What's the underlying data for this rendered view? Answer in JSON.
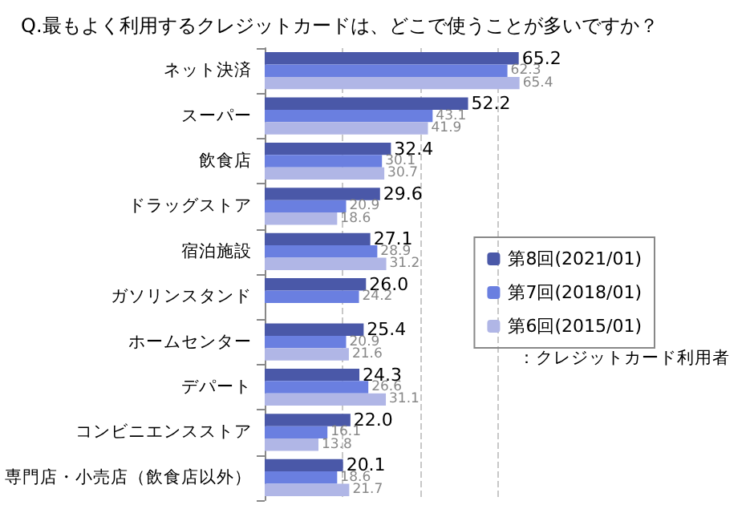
{
  "chart_data": {
    "type": "bar",
    "orientation": "horizontal",
    "title": "Q.最もよく利用するクレジットカードは、どこで使うことが多いですか？",
    "categories": [
      "ネット決済",
      "スーパー",
      "飲食店",
      "ドラッグストア",
      "宿泊施設",
      "ガソリンスタンド",
      "ホームセンター",
      "デパート",
      "コンビニエンスストア",
      "専門店・小売店（飲食店以外）"
    ],
    "series": [
      {
        "name": "第8回(2021/01)",
        "color": "#4a58a8",
        "values": [
          65.2,
          52.2,
          32.4,
          29.6,
          27.1,
          26.0,
          25.4,
          24.3,
          22.0,
          20.1
        ],
        "value_labels": [
          "65.2",
          "52.2",
          "32.4",
          "29.6",
          "27.1",
          "26.0",
          "25.4",
          "24.3",
          "22.0",
          "20.1"
        ]
      },
      {
        "name": "第7回(2018/01)",
        "color": "#6a7fe0",
        "values": [
          62.3,
          43.1,
          30.1,
          20.9,
          28.9,
          24.2,
          20.9,
          26.6,
          16.1,
          18.6
        ],
        "value_labels": [
          "62.3",
          "43.1",
          "30.1",
          "20.9",
          "28.9",
          "24.2",
          "20.9",
          "26.6",
          "16.1",
          "18.6"
        ]
      },
      {
        "name": "第6回(2015/01)",
        "color": "#b0b6e6",
        "values": [
          65.4,
          41.9,
          30.7,
          18.6,
          31.2,
          null,
          21.6,
          31.1,
          13.8,
          21.7
        ],
        "value_labels": [
          "65.4",
          "41.9",
          "30.7",
          "18.6",
          "31.2",
          null,
          "21.6",
          "31.1",
          "13.8",
          "21.7"
        ]
      }
    ],
    "xticks": [
      {
        "value": 20,
        "label": null
      },
      {
        "value": 40,
        "label": null
      },
      {
        "value": 60,
        "label": null
      }
    ],
    "grid": "x",
    "tick_labels": "y",
    "legend": "right",
    "annotations": [
      "：クレジットカード利用者"
    ]
  }
}
